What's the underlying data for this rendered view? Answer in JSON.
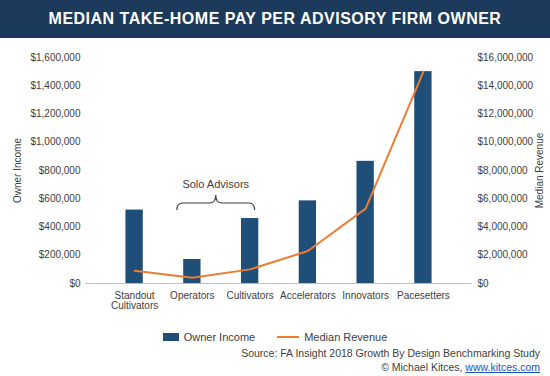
{
  "chart_data": {
    "type": "bar",
    "title": "MEDIAN TAKE-HOME PAY PER ADVISORY FIRM OWNER",
    "categories": [
      "Standout Cultivators",
      "Operators",
      "Cultivators",
      "Accelerators",
      "Innovators",
      "Pacesetters"
    ],
    "series": [
      {
        "name": "Owner Income",
        "type": "bar",
        "color": "#1f4e79",
        "values": [
          520000,
          170000,
          460000,
          585000,
          865000,
          1500000
        ]
      },
      {
        "name": "Median Revenue",
        "type": "line",
        "color": "#ed7d31",
        "axis": "y2",
        "values": [
          900000,
          400000,
          1000000,
          2300000,
          5300000,
          15000000
        ]
      }
    ],
    "ylabel": "Owner Income",
    "y2label": "Median Revenue",
    "ylim": [
      0,
      1600000
    ],
    "yticks": [
      {
        "value": 0,
        "label": "$0"
      },
      {
        "value": 200000,
        "label": "$200,000"
      },
      {
        "value": 400000,
        "label": "$400,000"
      },
      {
        "value": 600000,
        "label": "$600,000"
      },
      {
        "value": 800000,
        "label": "$800,000"
      },
      {
        "value": 1000000,
        "label": "$1,000,000"
      },
      {
        "value": 1200000,
        "label": "$1,200,000"
      },
      {
        "value": 1400000,
        "label": "$1,400,000"
      },
      {
        "value": 1600000,
        "label": "$1,600,000"
      }
    ],
    "y2lim": [
      0,
      16000000
    ],
    "y2ticks": [
      {
        "value": 0,
        "label": "$0"
      },
      {
        "value": 2000000,
        "label": "$2,000,000"
      },
      {
        "value": 4000000,
        "label": "$4,000,000"
      },
      {
        "value": 6000000,
        "label": "$6,000,000"
      },
      {
        "value": 8000000,
        "label": "$8,000,000"
      },
      {
        "value": 10000000,
        "label": "$10,000,000"
      },
      {
        "value": 12000000,
        "label": "$12,000,000"
      },
      {
        "value": 14000000,
        "label": "$14,000,000"
      },
      {
        "value": 16000000,
        "label": "$16,000,000"
      }
    ],
    "grid": false,
    "legend": "bottom",
    "annotations": [
      {
        "text": "Solo Advisors",
        "categories": [
          "Operators",
          "Cultivators"
        ]
      }
    ],
    "source": "Source: FA Insight 2018 Growth By Design Benchmarking Study",
    "credit": "© Michael Kitces,",
    "credit_link": "www.kitces.com"
  }
}
